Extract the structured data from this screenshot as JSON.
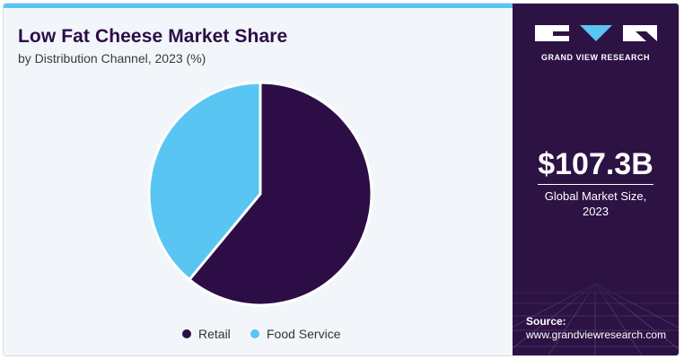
{
  "header": {
    "title": "Low Fat Cheese Market Share",
    "subtitle": "by Distribution Channel, 2023 (%)"
  },
  "chart_data": {
    "type": "pie",
    "title": "Low Fat Cheese Market Share",
    "subtitle": "by Distribution Channel, 2023 (%)",
    "categories": [
      "Retail",
      "Food Service"
    ],
    "values": [
      61,
      39
    ],
    "colors": [
      "#2d0d45",
      "#59c5f2"
    ],
    "legend_position": "bottom"
  },
  "legend": {
    "items": [
      {
        "label": "Retail",
        "color": "#2d0d45"
      },
      {
        "label": "Food Service",
        "color": "#59c5f2"
      }
    ]
  },
  "sidebar": {
    "brand": "GRAND VIEW RESEARCH",
    "market_size": "$107.3B",
    "market_size_label_line1": "Global Market Size,",
    "market_size_label_line2": "2023",
    "source_label": "Source:",
    "source_url": "www.grandviewresearch.com",
    "logo_icon": "grand-view-research-logo",
    "background_color": "#2d1244"
  }
}
